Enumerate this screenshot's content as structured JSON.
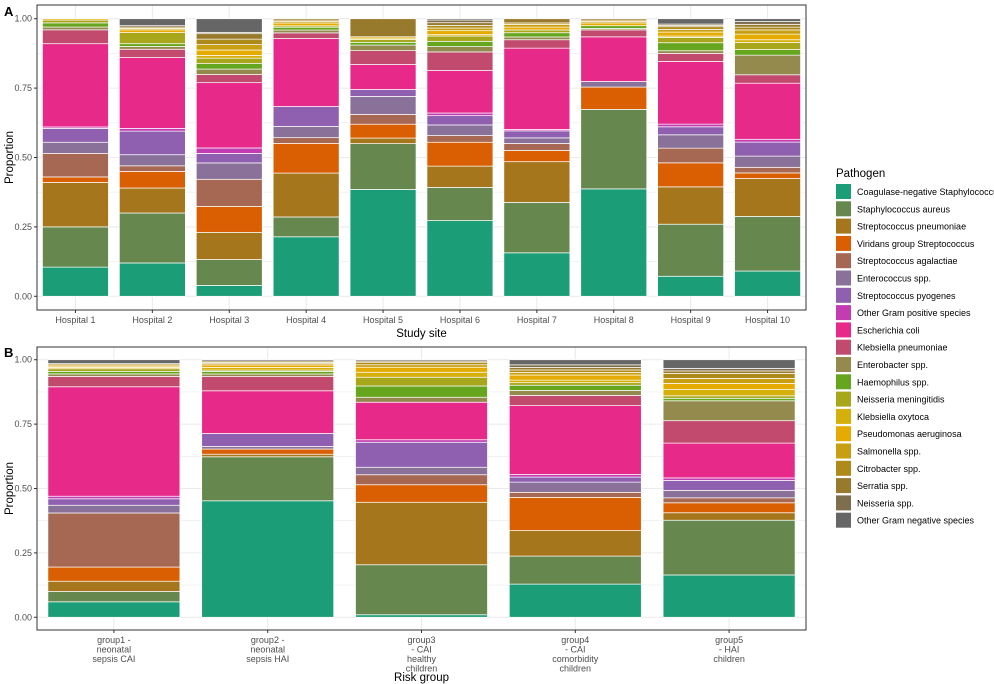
{
  "legend": {
    "title": "Pathogen",
    "entries": [
      {
        "name": "Coagulase-negative Staphylococcus",
        "color": "#1b9e77"
      },
      {
        "name": "Staphylococcus aureus",
        "color": "#66884f"
      },
      {
        "name": "Streptococcus pneumoniae",
        "color": "#a6761d"
      },
      {
        "name": "Viridans group Streptococcus",
        "color": "#d95f02"
      },
      {
        "name": "Streptococcus agalactiae",
        "color": "#a66753"
      },
      {
        "name": "Enterococcus spp.",
        "color": "#8a7199"
      },
      {
        "name": "Streptococcus pyogenes",
        "color": "#8f5fb0"
      },
      {
        "name": "Other Gram positive species",
        "color": "#c33cb2"
      },
      {
        "name": "Escherichia coli",
        "color": "#e7298a"
      },
      {
        "name": "Klebsiella pneumoniae",
        "color": "#c24a6e"
      },
      {
        "name": "Enterobacter spp.",
        "color": "#948a4e"
      },
      {
        "name": "Haemophilus spp.",
        "color": "#66a61e"
      },
      {
        "name": "Neisseria meningitidis",
        "color": "#a8a61a"
      },
      {
        "name": "Klebsiella oxytoca",
        "color": "#d5b00c"
      },
      {
        "name": "Pseudomonas aeruginosa",
        "color": "#e6ab02"
      },
      {
        "name": "Salmonella spp.",
        "color": "#c89f12"
      },
      {
        "name": "Citrobacter spp.",
        "color": "#ae8a1a"
      },
      {
        "name": "Serratia spp.",
        "color": "#987a2c"
      },
      {
        "name": "Neisseria spp.",
        "color": "#7f6e4e"
      },
      {
        "name": "Other Gram negative species",
        "color": "#666666"
      }
    ]
  },
  "chart_data": [
    {
      "type": "bar",
      "stacked": true,
      "panel_tag": "A",
      "xlabel": "Study site",
      "ylabel": "Proportion",
      "ylim": [
        0,
        1
      ],
      "yticks": [
        "0.00",
        "0.25",
        "0.50",
        "0.75",
        "1.00"
      ],
      "categories": [
        "Hospital 1",
        "Hospital 2",
        "Hospital 3",
        "Hospital 4",
        "Hospital 5",
        "Hospital 6",
        "Hospital 7",
        "Hospital 8",
        "Hospital 9",
        "Hospital 10"
      ],
      "series": [
        {
          "name": "Coagulase-negative Staphylococcus",
          "values": [
            0.105,
            0.12,
            0.04,
            0.21,
            0.385,
            0.285,
            0.155,
            0.385,
            0.075,
            0.09
          ]
        },
        {
          "name": "Staphylococcus aureus",
          "values": [
            0.145,
            0.18,
            0.095,
            0.07,
            0.165,
            0.125,
            0.18,
            0.285,
            0.195,
            0.195
          ]
        },
        {
          "name": "Streptococcus pneumoniae",
          "values": [
            0.16,
            0.09,
            0.1,
            0.155,
            0.02,
            0.08,
            0.145,
            0.0,
            0.14,
            0.135
          ]
        },
        {
          "name": "Viridans group Streptococcus",
          "values": [
            0.02,
            0.06,
            0.095,
            0.105,
            0.05,
            0.09,
            0.04,
            0.08,
            0.09,
            0.02
          ]
        },
        {
          "name": "Streptococcus agalactiae",
          "values": [
            0.085,
            0.02,
            0.1,
            0.02,
            0.035,
            0.025,
            0.025,
            0.0,
            0.055,
            0.02
          ]
        },
        {
          "name": "Enterococcus spp.",
          "values": [
            0.04,
            0.04,
            0.06,
            0.04,
            0.065,
            0.04,
            0.02,
            0.02,
            0.05,
            0.04
          ]
        },
        {
          "name": "Streptococcus pyogenes",
          "values": [
            0.05,
            0.085,
            0.035,
            0.07,
            0.025,
            0.035,
            0.025,
            0.0,
            0.03,
            0.05
          ]
        },
        {
          "name": "Other Gram positive species",
          "values": [
            0.005,
            0.01,
            0.02,
            0.0,
            0.0,
            0.01,
            0.005,
            0.0,
            0.01,
            0.01
          ]
        },
        {
          "name": "Escherichia coli",
          "values": [
            0.3,
            0.255,
            0.24,
            0.24,
            0.09,
            0.16,
            0.29,
            0.16,
            0.235,
            0.2
          ]
        },
        {
          "name": "Klebsiella pneumoniae",
          "values": [
            0.05,
            0.03,
            0.03,
            0.02,
            0.05,
            0.07,
            0.03,
            0.025,
            0.03,
            0.03
          ]
        },
        {
          "name": "Enterobacter spp.",
          "values": [
            0.01,
            0.01,
            0.02,
            0.01,
            0.02,
            0.02,
            0.01,
            0.005,
            0.01,
            0.07
          ]
        },
        {
          "name": "Haemophilus spp.",
          "values": [
            0.015,
            0.01,
            0.02,
            0.01,
            0.01,
            0.02,
            0.015,
            0.01,
            0.03,
            0.02
          ]
        },
        {
          "name": "Neisseria meningitidis",
          "values": [
            0.01,
            0.04,
            0.02,
            0.005,
            0.01,
            0.02,
            0.01,
            0.0,
            0.02,
            0.025
          ]
        },
        {
          "name": "Klebsiella oxytoca",
          "values": [
            0.0,
            0.0,
            0.01,
            0.0,
            0.005,
            0.005,
            0.0,
            0.0,
            0.005,
            0.01
          ]
        },
        {
          "name": "Pseudomonas aeruginosa",
          "values": [
            0.005,
            0.01,
            0.02,
            0.01,
            0.005,
            0.015,
            0.01,
            0.01,
            0.015,
            0.02
          ]
        },
        {
          "name": "Salmonella spp.",
          "values": [
            0.0,
            0.005,
            0.02,
            0.005,
            0.0,
            0.01,
            0.01,
            0.005,
            0.01,
            0.015
          ]
        },
        {
          "name": "Citrobacter spp.",
          "values": [
            0.0,
            0.005,
            0.02,
            0.005,
            0.0,
            0.01,
            0.005,
            0.005,
            0.01,
            0.01
          ]
        },
        {
          "name": "Serratia spp.",
          "values": [
            0.0,
            0.0,
            0.02,
            0.005,
            0.065,
            0.01,
            0.015,
            0.005,
            0.005,
            0.01
          ]
        },
        {
          "name": "Neisseria spp.",
          "values": [
            0.0,
            0.005,
            0.005,
            0.0,
            0.0,
            0.01,
            0.0,
            0.0,
            0.005,
            0.01
          ]
        },
        {
          "name": "Other Gram negative species",
          "values": [
            0.0,
            0.025,
            0.05,
            0.0,
            0.0,
            0.005,
            0.0,
            0.0,
            0.02,
            0.01
          ]
        }
      ]
    },
    {
      "type": "bar",
      "stacked": true,
      "panel_tag": "B",
      "xlabel": "Risk group",
      "ylabel": "Proportion",
      "ylim": [
        0,
        1
      ],
      "yticks": [
        "0.00",
        "0.25",
        "0.50",
        "0.75",
        "1.00"
      ],
      "categories": [
        "group1 -\nneonatal\nsepsis CAI",
        "group2 -\nneonatal\nsepsis HAI",
        "group3\n- CAI\nhealthy\nchildren",
        "group4\n- CAI\ncomorbidity\nchildren",
        "group5\n- HAI\nchildren"
      ],
      "series": [
        {
          "name": "Coagulase-negative Staphylococcus",
          "values": [
            0.06,
            0.45,
            0.01,
            0.13,
            0.17
          ]
        },
        {
          "name": "Staphylococcus aureus",
          "values": [
            0.04,
            0.17,
            0.2,
            0.11,
            0.22
          ]
        },
        {
          "name": "Streptococcus pneumoniae",
          "values": [
            0.04,
            0.01,
            0.25,
            0.1,
            0.03
          ]
        },
        {
          "name": "Viridans group Streptococcus",
          "values": [
            0.055,
            0.02,
            0.07,
            0.13,
            0.04
          ]
        },
        {
          "name": "Streptococcus agalactiae",
          "values": [
            0.21,
            0.0,
            0.04,
            0.02,
            0.02
          ]
        },
        {
          "name": "Enterococcus spp.",
          "values": [
            0.03,
            0.01,
            0.03,
            0.04,
            0.03
          ]
        },
        {
          "name": "Streptococcus pyogenes",
          "values": [
            0.025,
            0.05,
            0.1,
            0.02,
            0.04
          ]
        },
        {
          "name": "Other Gram positive species",
          "values": [
            0.01,
            0.0,
            0.01,
            0.01,
            0.01
          ]
        },
        {
          "name": "Escherichia coli",
          "values": [
            0.425,
            0.165,
            0.15,
            0.27,
            0.14
          ]
        },
        {
          "name": "Klebsiella pneumoniae",
          "values": [
            0.04,
            0.055,
            0.0,
            0.04,
            0.09
          ]
        },
        {
          "name": "Enterobacter spp.",
          "values": [
            0.01,
            0.01,
            0.02,
            0.02,
            0.08
          ]
        },
        {
          "name": "Haemophilus spp.",
          "values": [
            0.01,
            0.01,
            0.045,
            0.02,
            0.01
          ]
        },
        {
          "name": "Neisseria meningitidis",
          "values": [
            0.01,
            0.005,
            0.035,
            0.01,
            0.01
          ]
        },
        {
          "name": "Klebsiella oxytoca",
          "values": [
            0.005,
            0.01,
            0.02,
            0.01,
            0.025
          ]
        },
        {
          "name": "Pseudomonas aeruginosa",
          "values": [
            0.005,
            0.01,
            0.02,
            0.02,
            0.025
          ]
        },
        {
          "name": "Salmonella spp.",
          "values": [
            0.005,
            0.005,
            0.01,
            0.01,
            0.02
          ]
        },
        {
          "name": "Citrobacter spp.",
          "values": [
            0.005,
            0.005,
            0.01,
            0.01,
            0.02
          ]
        },
        {
          "name": "Serratia spp.",
          "values": [
            0.0,
            0.005,
            0.005,
            0.01,
            0.01
          ]
        },
        {
          "name": "Neisseria spp.",
          "values": [
            0.0,
            0.0,
            0.0,
            0.01,
            0.01
          ]
        },
        {
          "name": "Other Gram negative species",
          "values": [
            0.015,
            0.005,
            0.005,
            0.02,
            0.035
          ]
        }
      ]
    }
  ]
}
